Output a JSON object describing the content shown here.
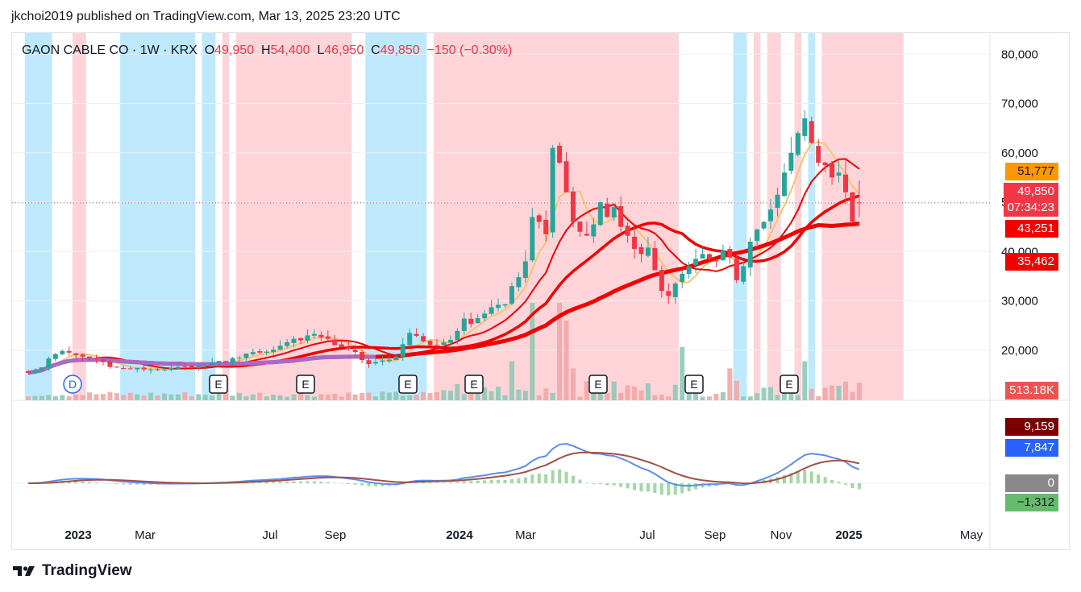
{
  "header": {
    "publish_text": "jkchoi2019 published on TradingView.com, Mar 13, 2025 23:20 UTC"
  },
  "legend": {
    "symbol": "GAON CABLE CO · 1W · KRX",
    "open_label": "O",
    "open": "49,950",
    "high_label": "H",
    "high": "54,400",
    "low_label": "L",
    "low": "46,950",
    "close_label": "C",
    "close": "49,850",
    "change": "−150 (−0.30%)"
  },
  "price_axis": {
    "ticks": [
      "80,000",
      "70,000",
      "60,000",
      "50,000",
      "40,000",
      "30,000",
      "20,000"
    ],
    "tags": [
      {
        "value": "51,777",
        "color": "#ff9800",
        "text_color": "#131722"
      },
      {
        "value": "49,850",
        "color": "#f23645",
        "text_color": "#ffffff",
        "extra": "07:34:23"
      },
      {
        "value": "43,251",
        "color": "#f20000",
        "text_color": "#ffffff"
      },
      {
        "value": "35,462",
        "color": "#f20000",
        "text_color": "#ffffff"
      },
      {
        "value": "513.18K",
        "color": "#ef5350",
        "text_color": "#ffffff"
      }
    ]
  },
  "macd_axis": {
    "tags": [
      {
        "value": "9,159",
        "color": "#7a0000",
        "text_color": "#ffffff"
      },
      {
        "value": "7,847",
        "color": "#2962ff",
        "text_color": "#ffffff"
      },
      {
        "value": "0",
        "color": "#888888",
        "text_color": "#ffffff"
      },
      {
        "value": "−1,312",
        "color": "#66bb6a",
        "text_color": "#131722"
      }
    ]
  },
  "time_axis": [
    "2023",
    "Mar",
    "Jul",
    "Sep",
    "2024",
    "Mar",
    "Jul",
    "Sep",
    "Nov",
    "2025",
    "May"
  ],
  "event_markers": [
    "D",
    "E",
    "E",
    "E",
    "E",
    "E",
    "E",
    "E"
  ],
  "footer": {
    "brand": "TradingView"
  },
  "colors": {
    "up": "#26a69a",
    "down": "#f23645",
    "bg_bull": "#ffcdd2",
    "bg_bear": "#b3e5fc",
    "macd_line": "#5b8def",
    "signal_line": "#a1504a"
  },
  "chart_data": {
    "type": "candlestick",
    "title": "GAON CABLE CO · 1W · KRX",
    "interval": "1W",
    "price_range": [
      8000,
      82000
    ],
    "last_close": 49850,
    "dates": [
      "2022-11-07",
      "2022-11-14",
      "2022-11-21",
      "2022-11-28",
      "2022-12-05",
      "2022-12-12",
      "2022-12-19",
      "2022-12-26",
      "2023-01-02",
      "2023-01-09",
      "2023-01-16",
      "2023-01-23",
      "2023-01-30",
      "2023-02-06",
      "2023-02-13",
      "2023-02-20",
      "2023-02-27",
      "2023-03-06",
      "2023-03-13",
      "2023-03-20",
      "2023-03-27",
      "2023-04-03",
      "2023-04-10",
      "2023-04-17",
      "2023-04-24",
      "2023-05-01",
      "2023-05-08",
      "2023-05-15",
      "2023-05-22",
      "2023-05-29",
      "2023-06-05",
      "2023-06-12",
      "2023-06-19",
      "2023-06-26",
      "2023-07-03",
      "2023-07-10",
      "2023-07-17",
      "2023-07-24",
      "2023-07-31",
      "2023-08-07",
      "2023-08-14",
      "2023-08-21",
      "2023-08-28",
      "2023-09-04",
      "2023-09-11",
      "2023-09-18",
      "2023-09-25",
      "2023-10-02",
      "2023-10-09",
      "2023-10-16",
      "2023-10-23",
      "2023-10-30",
      "2023-11-06",
      "2023-11-13",
      "2023-11-20",
      "2023-11-27",
      "2023-12-04",
      "2023-12-11",
      "2023-12-18",
      "2023-12-25",
      "2024-01-01",
      "2024-01-08",
      "2024-01-15",
      "2024-01-22",
      "2024-01-29",
      "2024-02-05",
      "2024-02-12",
      "2024-02-19",
      "2024-02-26",
      "2024-03-04",
      "2024-03-11",
      "2024-03-18",
      "2024-03-25",
      "2024-04-01",
      "2024-04-08",
      "2024-04-15",
      "2024-04-22",
      "2024-04-29",
      "2024-05-06",
      "2024-05-13",
      "2024-05-20",
      "2024-05-27",
      "2024-06-03",
      "2024-06-10",
      "2024-06-17",
      "2024-06-24",
      "2024-07-01",
      "2024-07-08",
      "2024-07-15",
      "2024-07-22",
      "2024-07-29",
      "2024-08-05",
      "2024-08-12",
      "2024-08-19",
      "2024-08-26",
      "2024-09-02",
      "2024-09-09",
      "2024-09-16",
      "2024-09-23",
      "2024-09-30",
      "2024-10-07",
      "2024-10-14",
      "2024-10-21",
      "2024-10-28",
      "2024-11-04",
      "2024-11-11",
      "2024-11-18",
      "2024-11-25",
      "2024-12-02",
      "2024-12-09",
      "2024-12-16",
      "2024-12-23",
      "2024-12-30",
      "2025-01-06",
      "2025-01-13",
      "2025-01-20",
      "2025-01-27",
      "2025-02-03",
      "2025-02-10",
      "2025-02-17",
      "2025-02-24",
      "2025-03-03",
      "2025-03-10"
    ],
    "close": [
      15400,
      15900,
      16500,
      18300,
      19200,
      19800,
      19500,
      19000,
      18700,
      18400,
      18200,
      17600,
      16600,
      16500,
      16300,
      16200,
      16400,
      16100,
      16100,
      16000,
      16100,
      16400,
      16600,
      16700,
      16500,
      16700,
      16900,
      17500,
      17800,
      17500,
      18400,
      18500,
      19300,
      19600,
      19500,
      19700,
      20100,
      20900,
      21600,
      22300,
      22000,
      23000,
      23300,
      22600,
      22300,
      21000,
      20600,
      20200,
      19600,
      18000,
      17200,
      17600,
      17900,
      18100,
      18700,
      21200,
      23500,
      22900,
      21800,
      21000,
      20900,
      21600,
      22100,
      23900,
      26400,
      25300,
      26500,
      27400,
      28700,
      29200,
      29300,
      33000,
      34800,
      38000,
      47000,
      46000,
      43500,
      61000,
      58000,
      52000,
      46000,
      44000,
      43200,
      45500,
      50000,
      47000,
      49000,
      45000,
      43200,
      40500,
      39500,
      40800,
      36200,
      32000,
      31000,
      33500,
      35500,
      37000,
      38500,
      39500,
      38500,
      38000,
      40200,
      38800,
      34200,
      37000,
      42000,
      44500,
      46000,
      48500,
      51500,
      56000,
      60000,
      64000,
      67000,
      62000,
      58000,
      57500,
      55000,
      56000,
      52000,
      46000,
      49850
    ]
  }
}
